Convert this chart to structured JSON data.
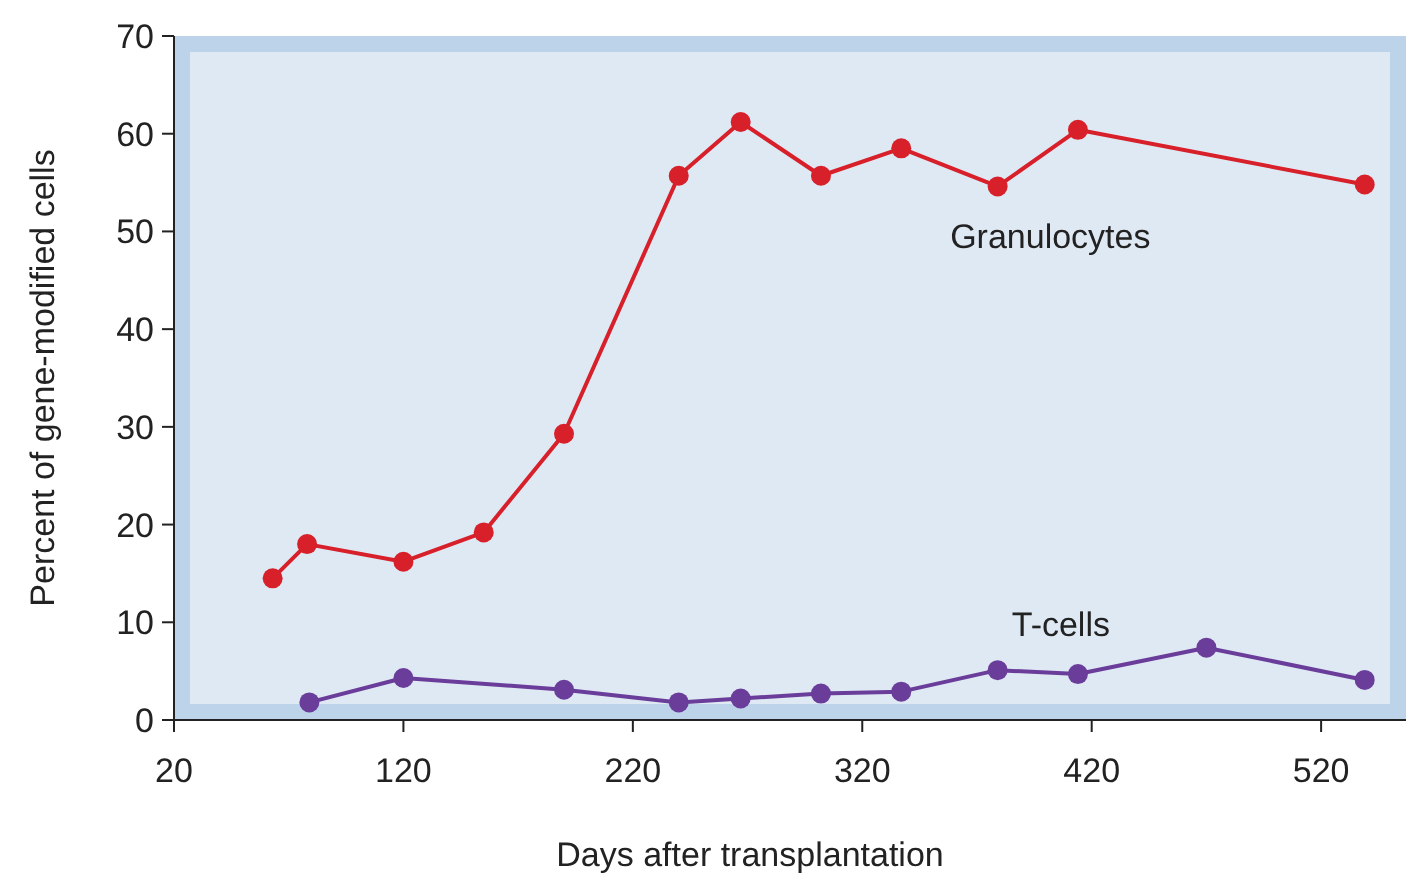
{
  "chart_data": {
    "type": "line",
    "xlabel": "Days after transplantation",
    "ylabel": "Percent of gene-modified cells",
    "xlim": [
      20,
      557
    ],
    "xticks": [
      20,
      120,
      220,
      320,
      420,
      520
    ],
    "ylim": [
      0,
      70
    ],
    "yticks": [
      0,
      10,
      20,
      30,
      40,
      50,
      60,
      70
    ],
    "grid": false,
    "legend": false,
    "marker": "circle",
    "line_style": "solid",
    "series": [
      {
        "name": "Granulocytes",
        "color": "#d7202a",
        "x": [
          63,
          78,
          120,
          155,
          190,
          240,
          267,
          302,
          337,
          379,
          414,
          539
        ],
        "values": [
          14.5,
          18,
          16.2,
          19.2,
          29.3,
          55.7,
          61.2,
          55.7,
          58.5,
          54.6,
          60.4,
          54.8
        ]
      },
      {
        "name": "T-cells",
        "color": "#6a3d9a",
        "x": [
          79,
          120,
          190,
          240,
          267,
          302,
          337,
          379,
          414,
          470,
          539
        ],
        "values": [
          1.8,
          4.3,
          3.1,
          1.8,
          2.2,
          2.7,
          2.9,
          5.1,
          4.7,
          7.4,
          4.1
        ]
      }
    ]
  }
}
